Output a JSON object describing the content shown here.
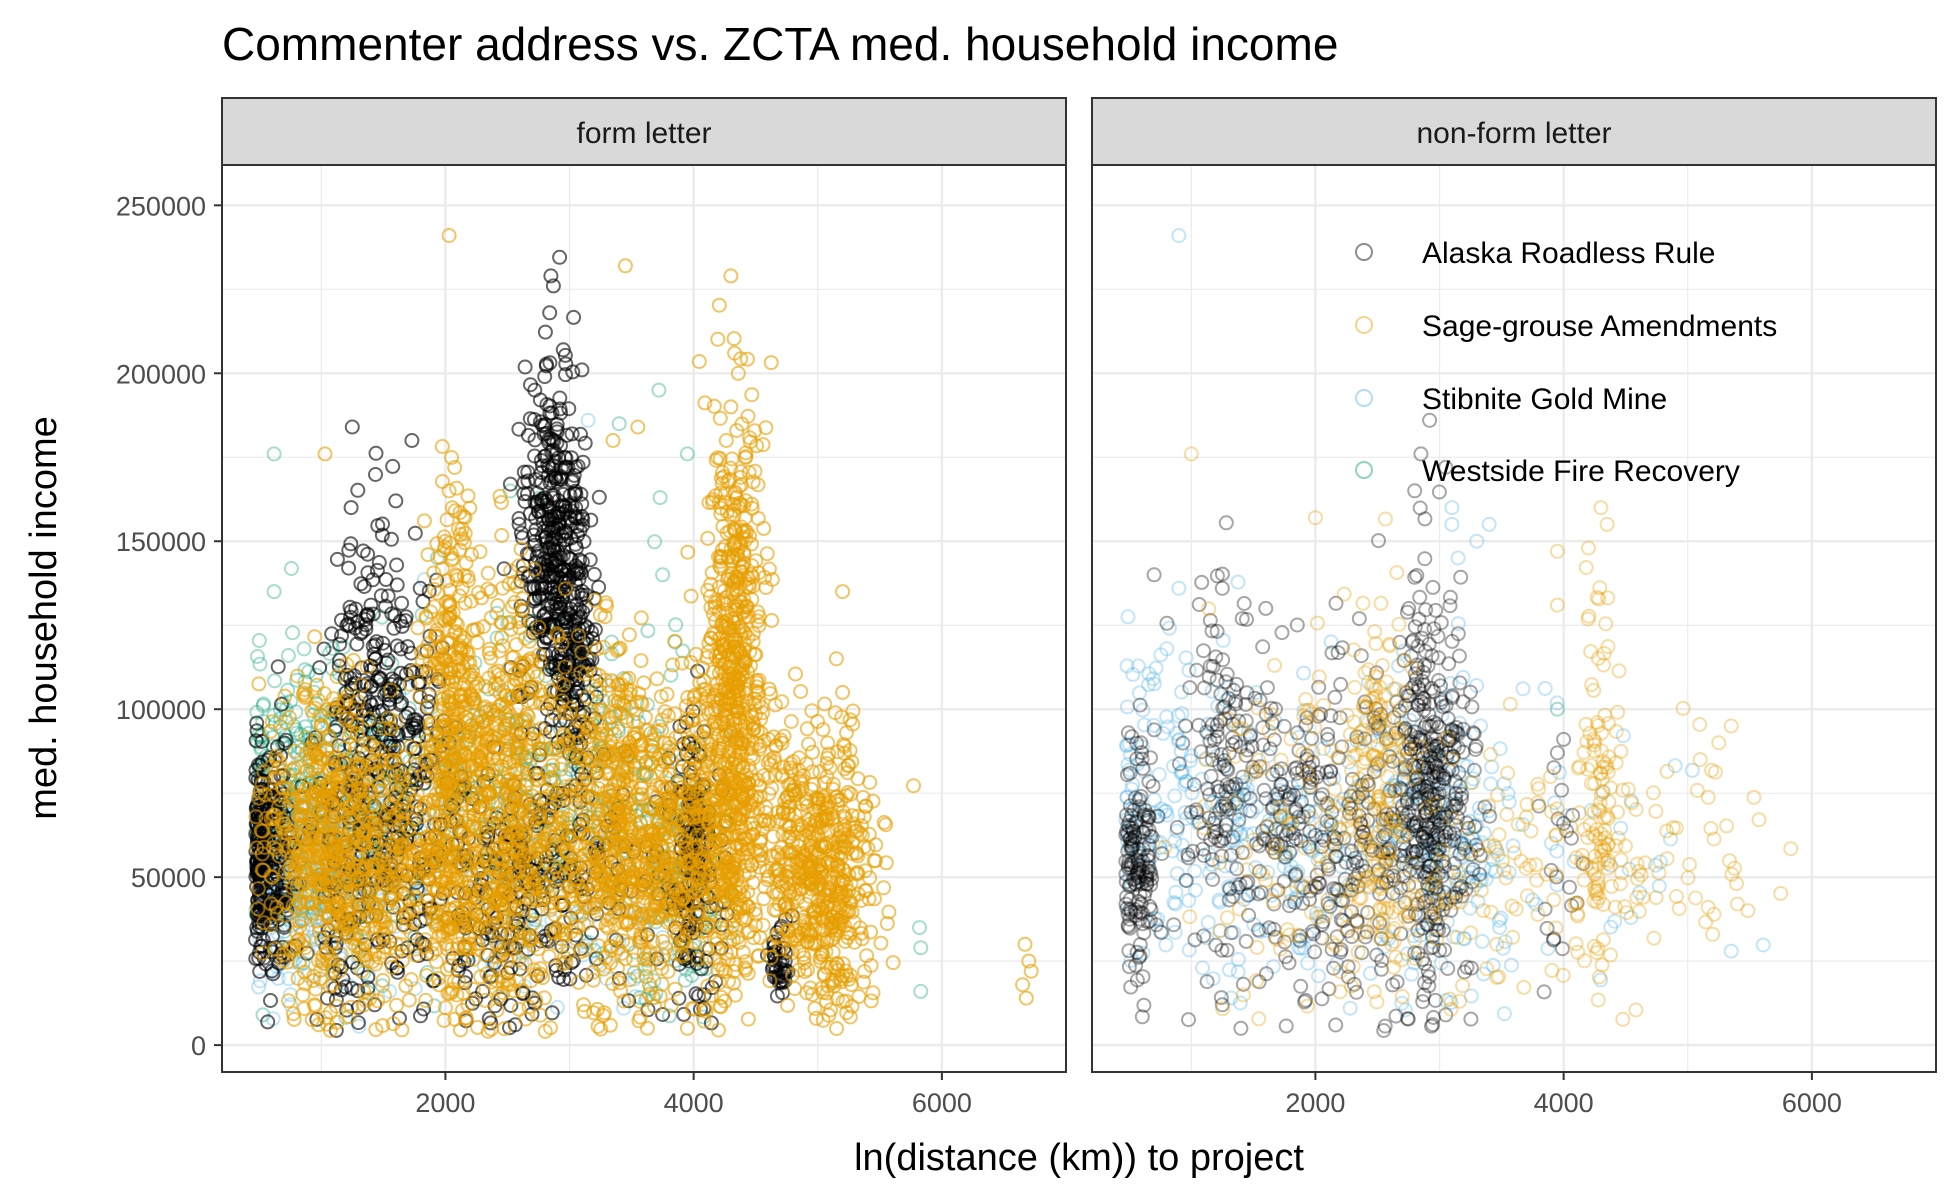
{
  "colors": {
    "alaska": "#000000",
    "sage": "#E69F00",
    "stibnite": "#56B4E9",
    "westside": "#009E73",
    "strip_fill": "#D9D9D9",
    "grid": "#EBEBEB",
    "panel_border": "#333333"
  },
  "chart_data": {
    "type": "scatter",
    "title": "Commenter address vs. ZCTA med. household income",
    "xlabel": "ln(distance (km)) to project",
    "ylabel": "med. household income",
    "xlim": [
      200,
      7000
    ],
    "ylim": [
      -8000,
      262000
    ],
    "x_ticks": [
      2000,
      4000,
      6000
    ],
    "x_tick_labels": [
      "2000",
      "4000",
      "6000"
    ],
    "y_ticks": [
      0,
      50000,
      100000,
      150000,
      200000,
      250000
    ],
    "y_tick_labels": [
      "0",
      "50000",
      "100000",
      "150000",
      "200000",
      "250000"
    ],
    "grid": true,
    "point_shape": "open circle",
    "legend_position": "top-right inside right panel",
    "panels": [
      {
        "label": "form letter",
        "series": [
          {
            "name": "Alaska Roadless Rule",
            "clusters": [
              [
                560,
                55000,
                110,
                18000,
                260
              ],
              [
                1200,
                60000,
                160,
                28000,
                130
              ],
              [
                1350,
                110000,
                150,
                25000,
                110
              ],
              [
                1650,
                95000,
                170,
                24000,
                150
              ],
              [
                1700,
                45000,
                180,
                18000,
                70
              ],
              [
                2250,
                45000,
                250,
                20000,
                80
              ],
              [
                2550,
                40000,
                200,
                18000,
                60
              ],
              [
                2850,
                150000,
                120,
                26000,
                340
              ],
              [
                3050,
                120000,
                80,
                22000,
                160
              ],
              [
                2800,
                55000,
                250,
                20000,
                100
              ],
              [
                4000,
                55000,
                110,
                22000,
                180
              ],
              [
                4700,
                25000,
                50,
                6000,
                40
              ],
              [
                3400,
                45000,
                400,
                16000,
                50
              ]
            ],
            "points": [
              [
                1250,
                184000
              ],
              [
                1730,
                180000
              ],
              [
                2850,
                229000
              ],
              [
                2870,
                226000
              ],
              [
                2840,
                218000
              ],
              [
                3100,
                201000
              ],
              [
                2950,
                207000
              ],
              [
                2800,
                199000
              ],
              [
                3050,
                172000
              ],
              [
                1240,
                160000
              ],
              [
                1600,
                162000
              ],
              [
                2720,
                195000
              ],
              [
                1400,
                131000
              ],
              [
                1220,
                142000
              ],
              [
                3050,
                160000
              ],
              [
                2820,
                100000
              ],
              [
                2900,
                75000
              ],
              [
                2860,
                46000
              ],
              [
                2850,
                34000
              ],
              [
                1430,
                12000
              ],
              [
                1650,
                28000
              ],
              [
                2300,
                16000
              ],
              [
                1050,
                14000
              ]
            ]
          },
          {
            "name": "Sage-grouse Amendments",
            "clusters": [
              [
                1000,
                60000,
                220,
                22000,
                520
              ],
              [
                1500,
                55000,
                250,
                20000,
                300
              ],
              [
                2050,
                90000,
                120,
                32000,
                420
              ],
              [
                2500,
                80000,
                180,
                30000,
                420
              ],
              [
                2200,
                45000,
                300,
                17000,
                180
              ],
              [
                3300,
                75000,
                250,
                25000,
                380
              ],
              [
                3800,
                55000,
                250,
                22000,
                420
              ],
              [
                4330,
                110000,
                110,
                40000,
                560
              ],
              [
                4300,
                70000,
                300,
                25000,
                320
              ],
              [
                5000,
                55000,
                220,
                18000,
                420
              ],
              [
                3000,
                45000,
                350,
                18000,
                200
              ],
              [
                5150,
                40000,
                120,
                18000,
                120
              ]
            ],
            "points": [
              [
                2030,
                241000
              ],
              [
                3450,
                232000
              ],
              [
                4300,
                229000
              ],
              [
                4330,
                206000
              ],
              [
                4360,
                200000
              ],
              [
                4300,
                190000
              ],
              [
                3350,
                180000
              ],
              [
                1030,
                176000
              ],
              [
                3550,
                184000
              ],
              [
                2030,
                165000
              ],
              [
                2000,
                150000
              ],
              [
                6680,
                14000
              ],
              [
                6700,
                25000
              ],
              [
                6670,
                30000
              ],
              [
                6720,
                22000
              ],
              [
                6650,
                18000
              ],
              [
                3950,
                5000
              ],
              [
                5200,
                135000
              ],
              [
                5150,
                115000
              ],
              [
                5200,
                105000
              ],
              [
                4100,
                10000
              ]
            ]
          },
          {
            "name": "Stibnite Gold Mine",
            "clusters": [
              [
                700,
                50000,
                180,
                16000,
                120
              ],
              [
                1100,
                45000,
                220,
                15000,
                80
              ],
              [
                1500,
                70000,
                200,
                20000,
                70
              ],
              [
                2400,
                45000,
                350,
                18000,
                70
              ],
              [
                3300,
                40000,
                350,
                16000,
                60
              ]
            ],
            "points": [
              [
                3150,
                186000
              ],
              [
                750,
                15000
              ],
              [
                3350,
                108000
              ],
              [
                1550,
                16000
              ]
            ]
          },
          {
            "name": "Westside Fire Recovery",
            "clusters": [
              [
                800,
                80000,
                220,
                25000,
                180
              ],
              [
                1400,
                70000,
                260,
                22000,
                130
              ],
              [
                2300,
                75000,
                280,
                22000,
                90
              ],
              [
                3300,
                80000,
                280,
                25000,
                90
              ],
              [
                3900,
                50000,
                200,
                20000,
                90
              ],
              [
                2900,
                90000,
                250,
                25000,
                70
              ]
            ],
            "points": [
              [
                620,
                176000
              ],
              [
                3720,
                195000
              ],
              [
                3950,
                176000
              ],
              [
                3750,
                140000
              ],
              [
                3730,
                163000
              ],
              [
                5820,
                35000
              ],
              [
                5830,
                29000
              ],
              [
                5830,
                16000
              ],
              [
                530,
                9000
              ],
              [
                620,
                135000
              ],
              [
                3850,
                120000
              ],
              [
                3400,
                185000
              ]
            ]
          }
        ]
      },
      {
        "label": "non-form letter",
        "series": [
          {
            "name": "Alaska Roadless Rule",
            "clusters": [
              [
                560,
                55000,
                70,
                17000,
                150
              ],
              [
                1300,
                80000,
                200,
                30000,
                150
              ],
              [
                1900,
                65000,
                280,
                26000,
                180
              ],
              [
                2900,
                80000,
                160,
                30000,
                320
              ],
              [
                2500,
                55000,
                300,
                22000,
                110
              ],
              [
                3100,
                55000,
                150,
                20000,
                70
              ],
              [
                4000,
                55000,
                80,
                20000,
                18
              ]
            ],
            "points": [
              [
                2920,
                186000
              ],
              [
                2850,
                176000
              ],
              [
                3050,
                172000
              ],
              [
                2800,
                165000
              ],
              [
                1250,
                136000
              ],
              [
                700,
                140000
              ],
              [
                1600,
                130000
              ],
              [
                1250,
                12000
              ],
              [
                1400,
                5000
              ],
              [
                3050,
                9000
              ],
              [
                3950,
                87000
              ],
              [
                4000,
                91000
              ],
              [
                4000,
                66000
              ],
              [
                3900,
                52000
              ]
            ]
          },
          {
            "name": "Sage-grouse Amendments",
            "clusters": [
              [
                2550,
                75000,
                130,
                30000,
                150
              ],
              [
                2000,
                65000,
                450,
                25000,
                140
              ],
              [
                4300,
                75000,
                90,
                30000,
                110
              ],
              [
                3600,
                50000,
                600,
                18000,
                120
              ],
              [
                4900,
                55000,
                400,
                18000,
                40
              ]
            ],
            "points": [
              [
                1000,
                176000
              ],
              [
                4300,
                160000
              ],
              [
                4350,
                155000
              ],
              [
                4200,
                148000
              ],
              [
                3950,
                147000
              ],
              [
                3950,
                131000
              ],
              [
                5350,
                95000
              ],
              [
                5250,
                90000
              ],
              [
                5100,
                85000
              ],
              [
                2000,
                157000
              ],
              [
                5400,
                42000
              ],
              [
                5200,
                33000
              ]
            ]
          },
          {
            "name": "Stibnite Gold Mine",
            "clusters": [
              [
                900,
                75000,
                350,
                24000,
                150
              ],
              [
                1800,
                60000,
                400,
                22000,
                120
              ],
              [
                2900,
                65000,
                300,
                24000,
                140
              ],
              [
                3300,
                55000,
                250,
                20000,
                50
              ],
              [
                4300,
                65000,
                400,
                22000,
                30
              ]
            ],
            "points": [
              [
                900,
                241000
              ],
              [
                3100,
                155000
              ],
              [
                3150,
                145000
              ],
              [
                3300,
                150000
              ],
              [
                3100,
                160000
              ],
              [
                3400,
                155000
              ],
              [
                5350,
                28000
              ],
              [
                900,
                136000
              ]
            ]
          },
          {
            "name": "Westside Fire Recovery",
            "clusters": [],
            "points": [
              [
                3950,
                100000
              ]
            ]
          }
        ]
      }
    ]
  }
}
